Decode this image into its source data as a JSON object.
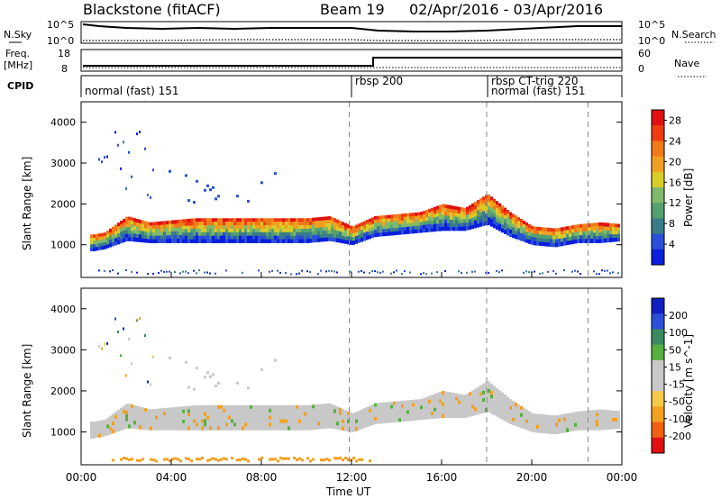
{
  "header": {
    "station": "Blackstone (fitACF)",
    "beam": "Beam 19",
    "dates": "02/Apr/2016 - 03/Apr/2016"
  },
  "noise_panel": {
    "left_label": "N.Sky",
    "right_label": "N.Search",
    "left_ticks": [
      "10^5",
      "10^0"
    ],
    "right_ticks": [
      "10^5",
      "10^0"
    ]
  },
  "freq_panel": {
    "left_label_1": "Freq.",
    "left_label_2": "[MHz]",
    "right_label": "Nave",
    "left_ticks": [
      "18",
      "8"
    ],
    "right_ticks": [
      "60",
      "0"
    ]
  },
  "cpid": {
    "label": "CPID",
    "modes": [
      {
        "text": "normal (fast) 151",
        "start_hour": 0.0
      },
      {
        "text": "rbsp 200",
        "start_hour": 11.9
      },
      {
        "text": "rbsp CT-trig 220",
        "start_hour": 18.0
      },
      {
        "text": "normal (fast) 151",
        "start_hour": 18.0
      }
    ]
  },
  "colors": {
    "power": [
      "#0a1edc",
      "#2a4fd8",
      "#3a7d8a",
      "#55a070",
      "#7fb96b",
      "#d8cc2a",
      "#f0a020",
      "#f07a18",
      "#ef3a12",
      "#e01010"
    ],
    "velocity": [
      "#e01010",
      "#f06010",
      "#f4a020",
      "#f8c848",
      "#c8c8c8",
      "#c8c8c8",
      "#55b040",
      "#3a8a60",
      "#2a4fd8",
      "#1020c0"
    ]
  },
  "chart_data": [
    {
      "type": "heatmap",
      "name": "power",
      "ylabel": "Slant Range [km]",
      "xlabel": "Time UT",
      "x_ticks": [
        "00:00",
        "04:00",
        "08:00",
        "12:00",
        "16:00",
        "20:00",
        "00:00"
      ],
      "xlim_hours": [
        0,
        24
      ],
      "y_ticks": [
        1000,
        2000,
        3000,
        4000
      ],
      "ylim": [
        200,
        4500
      ],
      "colorbar_label": "Power [dB]",
      "colorbar_ticks": [
        4,
        8,
        12,
        16,
        20,
        24,
        28
      ],
      "colorbar_range": [
        0,
        30
      ],
      "dashed_lines_hours": [
        11.9,
        18.0,
        22.5
      ],
      "backscatter_bands": [
        {
          "t": [
            0.5,
            1.0,
            2.0,
            3.0,
            5.0,
            8.0,
            10.0,
            11.0,
            12.0,
            13.0,
            15.0,
            16.0,
            17.0,
            18.0,
            19.0,
            20.0,
            21.0,
            22.0,
            23.0,
            24.0
          ],
          "low": [
            850,
            900,
            1100,
            1050,
            1050,
            1050,
            1050,
            1100,
            1000,
            1200,
            1300,
            1350,
            1350,
            1500,
            1200,
            1000,
            950,
            1050,
            1050,
            1100
          ],
          "high": [
            1250,
            1300,
            1700,
            1550,
            1650,
            1650,
            1650,
            1700,
            1450,
            1700,
            1800,
            2000,
            1900,
            2250,
            1800,
            1450,
            1400,
            1500,
            1550,
            1500
          ]
        }
      ]
    },
    {
      "type": "heatmap",
      "name": "velocity",
      "ylabel": "Slant Range [km]",
      "xlabel": "Time UT",
      "x_ticks": [
        "00:00",
        "04:00",
        "08:00",
        "12:00",
        "16:00",
        "20:00",
        "00:00"
      ],
      "xlim_hours": [
        0,
        24
      ],
      "y_ticks": [
        1000,
        2000,
        3000,
        4000
      ],
      "ylim": [
        200,
        4500
      ],
      "colorbar_label": "Velocity [m s^-1]",
      "colorbar_ticks": [
        200,
        100,
        50,
        15,
        -15,
        -50,
        -100,
        -200
      ],
      "dashed_lines_hours": [
        11.9,
        18.0,
        22.5
      ]
    }
  ]
}
